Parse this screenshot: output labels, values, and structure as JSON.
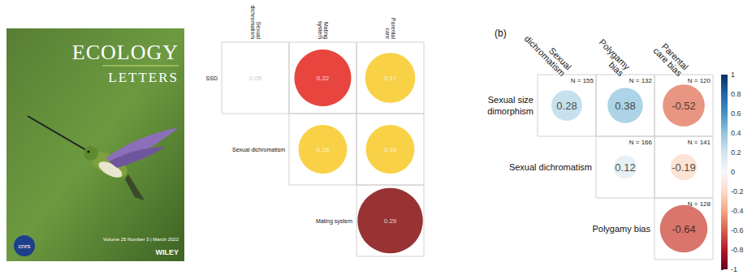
{
  "cover": {
    "title": "ECOLOGY",
    "subtitle": "LETTERS",
    "issue": "Volume 25 Number 3 | March 2022",
    "publisher": "WILEY",
    "logo": "cnrs"
  },
  "chart_data": [
    {
      "type": "correlogram",
      "columns": [
        "Sexual dichromatism",
        "Mating system",
        "Parental care"
      ],
      "rows": [
        "SSD",
        "Sexual dichromatism",
        "Mating system"
      ],
      "cells": [
        {
          "row": 0,
          "col": 0,
          "value": 0.05,
          "color": "#ffffff"
        },
        {
          "row": 0,
          "col": 1,
          "value": 0.22,
          "color": "#e3170f"
        },
        {
          "row": 0,
          "col": 2,
          "value": 0.17,
          "color": "#f6c519"
        },
        {
          "row": 1,
          "col": 1,
          "value": 0.16,
          "color": "#f6c519"
        },
        {
          "row": 1,
          "col": 2,
          "value": 0.16,
          "color": "#f6c519"
        },
        {
          "row": 2,
          "col": 2,
          "value": 0.29,
          "color": "#7d0000"
        }
      ],
      "data_labels": true
    },
    {
      "type": "correlogram",
      "title": "(b)",
      "columns": [
        "Sexual dichromatism",
        "Polygamy bias",
        "Parental care bias"
      ],
      "rows": [
        "Sexual size dimorphism",
        "Sexual dichromatism",
        "Polygamy bias"
      ],
      "cells": [
        {
          "row": 0,
          "col": 0,
          "value": 0.28,
          "n_label": "N = 155"
        },
        {
          "row": 0,
          "col": 1,
          "value": 0.38,
          "n_label": "N = 132"
        },
        {
          "row": 0,
          "col": 2,
          "value": -0.52,
          "n_label": "N = 120"
        },
        {
          "row": 1,
          "col": 1,
          "value": 0.12,
          "n_label": "N = 166"
        },
        {
          "row": 1,
          "col": 2,
          "value": -0.19,
          "n_label": "N = 141"
        },
        {
          "row": 2,
          "col": 2,
          "value": -0.64,
          "n_label": "N = 128"
        }
      ],
      "colorbar": {
        "range": [
          -1,
          1
        ],
        "ticks": [
          -1,
          -0.8,
          -0.6,
          -0.4,
          -0.2,
          0,
          0.2,
          0.4,
          0.6,
          0.8,
          1
        ]
      },
      "data_labels": true
    }
  ]
}
